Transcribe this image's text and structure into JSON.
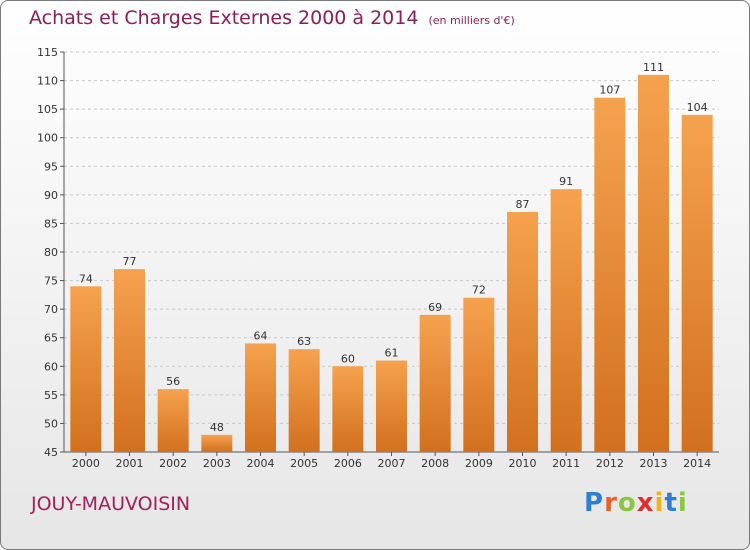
{
  "header": {
    "title": "Achats et Charges Externes 2000 à 2014",
    "unit": "(en milliers d'€)"
  },
  "footer": {
    "commune": "JOUY-MAUVOISIN",
    "logo": "Proxiti"
  },
  "colors": {
    "title": "#8d1d56",
    "bar_light": "#f5a24e",
    "bar_dark": "#d2701f",
    "grid": "#c8c8c8",
    "logo_letters": [
      "#2f7fd0",
      "#e8632b",
      "#8cc63f",
      "#e02d2d",
      "#f2b31a",
      "#2f7fd0",
      "#8cc63f"
    ]
  },
  "chart_data": {
    "type": "bar",
    "title": "Achats et Charges Externes 2000 à 2014",
    "subtitle": "(en milliers d'€)",
    "xlabel": "",
    "ylabel": "",
    "categories": [
      "2000",
      "2001",
      "2002",
      "2003",
      "2004",
      "2005",
      "2006",
      "2007",
      "2008",
      "2009",
      "2010",
      "2011",
      "2012",
      "2013",
      "2014"
    ],
    "values": [
      74,
      77,
      56,
      48,
      64,
      63,
      60,
      61,
      69,
      72,
      87,
      91,
      107,
      111,
      104
    ],
    "ylim": [
      45,
      115
    ],
    "yticks": [
      45,
      50,
      55,
      60,
      65,
      70,
      75,
      80,
      85,
      90,
      95,
      100,
      105,
      110,
      115
    ],
    "grid": "horizontal dashed",
    "legend": "none"
  }
}
